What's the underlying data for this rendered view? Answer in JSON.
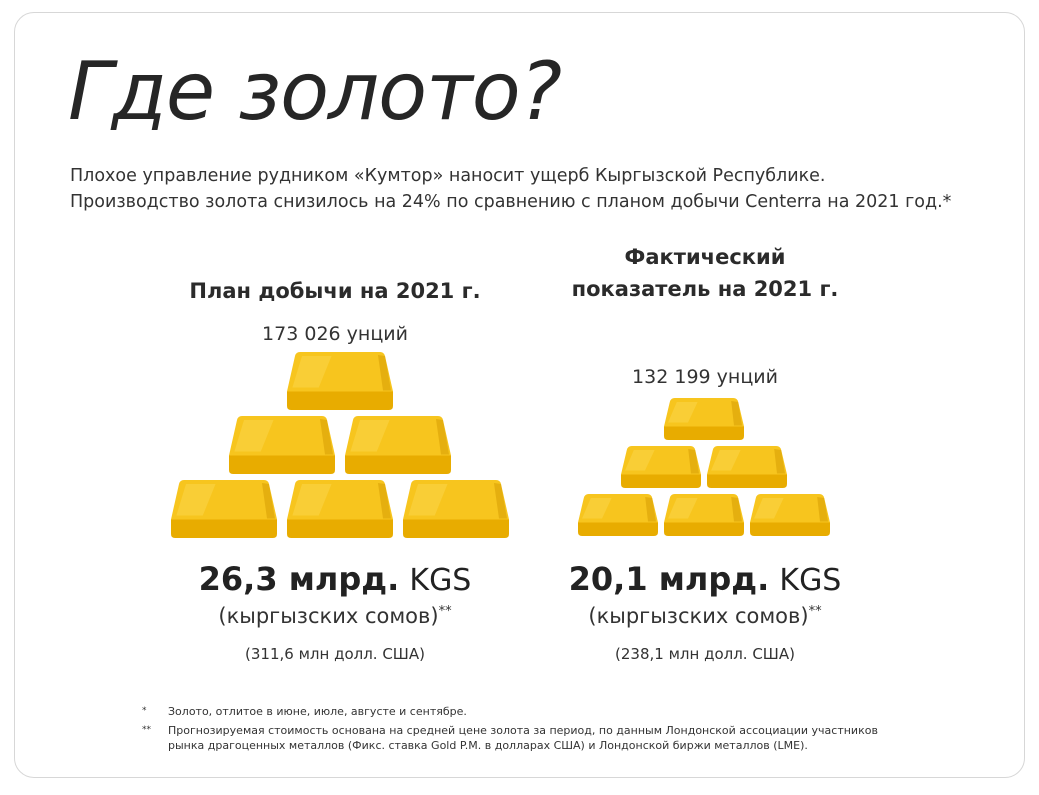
{
  "title": "Где золото?",
  "subtitle": {
    "line1": "Плохое управление рудником «Кумтор» наносит ущерб Кыргызской Республике.",
    "line2": "Производство золота снизилось на 24% по сравнению с планом добычи Centerra на 2021 год.*"
  },
  "plan": {
    "heading": "План добычи на 2021 г.",
    "ounces": "173 026 унций",
    "amount_num": "26,3 млрд.",
    "amount_cur": "KGS",
    "currency_full": "(кыргызских сомов)",
    "currency_mark": "**",
    "usd": "(311,6 млн долл. США)",
    "bar_count": 6
  },
  "actual": {
    "heading_line1": "Фактический",
    "heading_line2": "показатель на 2021 г.",
    "ounces": "132 199 унций",
    "amount_num": "20,1 млрд.",
    "amount_cur": "KGS",
    "currency_full": "(кыргызских сомов)",
    "currency_mark": "**",
    "usd": "(238,1 млн долл. США)",
    "bar_count": 6
  },
  "footnotes": [
    {
      "mark": "*",
      "text": "Золото, отлитое в июне, июле, августе и сентябре."
    },
    {
      "mark": "**",
      "text": "Прогнозируемая стоимость основана на средней цене золота за период, по данным Лондонской ассоциации участников рынка драгоценных металлов (Фикс. ставка Gold P.M. в долларах США) и Лондонской биржи металлов (LME)."
    }
  ],
  "colors": {
    "gold_top": "#f7c51e",
    "gold_front": "#e8ac00",
    "gold_side": "#d49a00",
    "gold_highlight": "#fbd54a"
  }
}
